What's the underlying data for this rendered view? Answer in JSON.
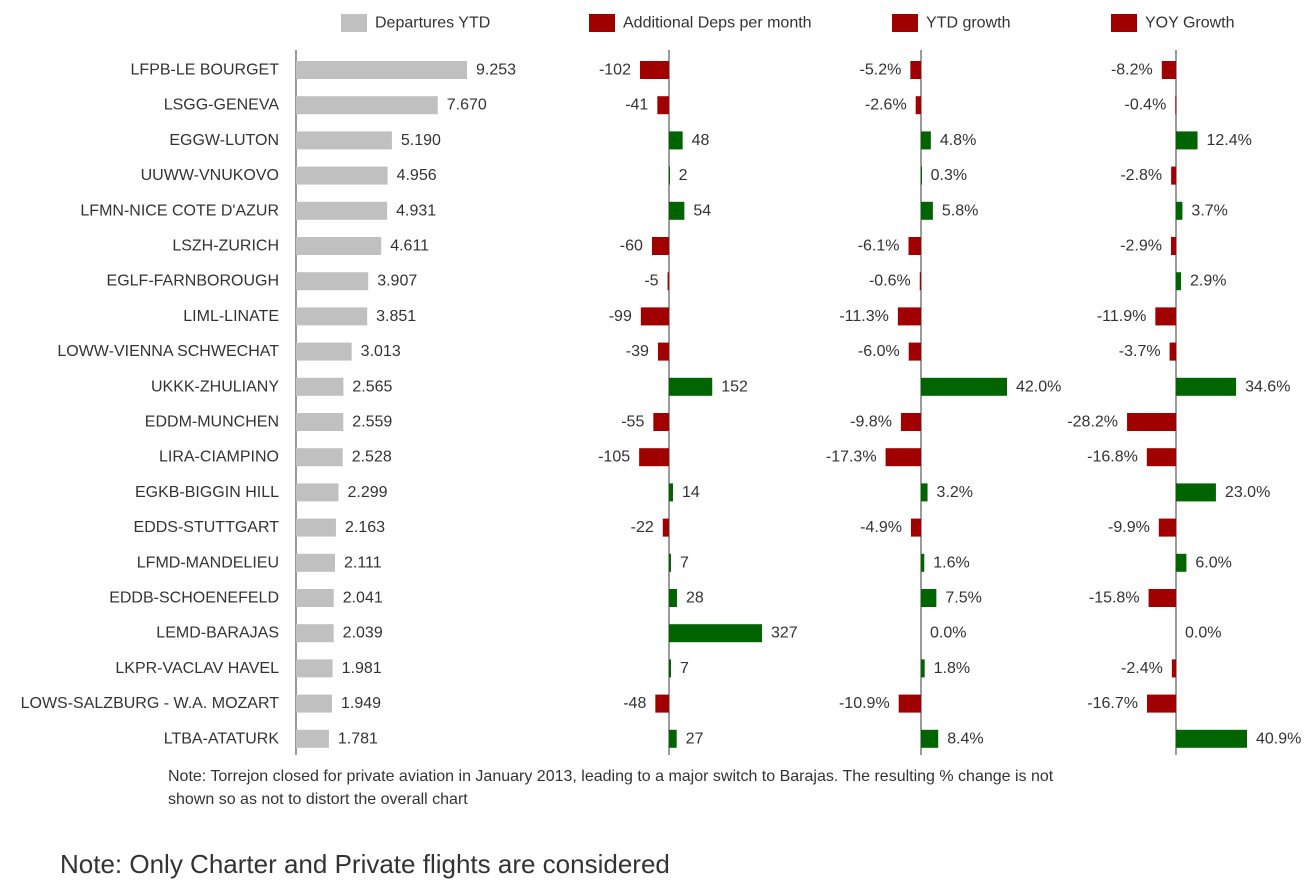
{
  "chart_data": {
    "type": "bar",
    "orientation": "horizontal",
    "categories": [
      "LFPB-LE BOURGET",
      "LSGG-GENEVA",
      "EGGW-LUTON",
      "UUWW-VNUKOVO",
      "LFMN-NICE COTE D'AZUR",
      "LSZH-ZURICH",
      "EGLF-FARNBOROUGH",
      "LIML-LINATE",
      "LOWW-VIENNA SCHWECHAT",
      "UKKK-ZHULIANY",
      "EDDM-MUNCHEN",
      "LIRA-CIAMPINO",
      "EGKB-BIGGIN HILL",
      "EDDS-STUTTGART",
      "LFMD-MANDELIEU",
      "EDDB-SCHOENEFELD",
      "LEMD-BARAJAS",
      "LKPR-VACLAV HAVEL",
      "LOWS-SALZBURG - W.A. MOZART",
      "LTBA-ATATURK"
    ],
    "legend": [
      "Departures YTD",
      "Additional Deps per month",
      "YTD growth",
      "YOY Growth"
    ],
    "legend_position": "top",
    "colors": {
      "departures": "#c0c0c0",
      "negative": "#a00000",
      "positive": "#006400",
      "axis": "#595959"
    },
    "series": [
      {
        "name": "Departures YTD",
        "values": [
          9253,
          7670,
          5190,
          4956,
          4931,
          4611,
          3907,
          3851,
          3013,
          2565,
          2559,
          2528,
          2299,
          2163,
          2111,
          2041,
          2039,
          1981,
          1949,
          1781
        ],
        "labels": [
          "9.253",
          "7.670",
          "5.190",
          "4.956",
          "4.931",
          "4.611",
          "3.907",
          "3.851",
          "3.013",
          "2.565",
          "2.559",
          "2.528",
          "2.299",
          "2.163",
          "2.111",
          "2.041",
          "2.039",
          "1.981",
          "1.949",
          "1.781"
        ]
      },
      {
        "name": "Additional Deps per month",
        "values": [
          -102,
          -41,
          48,
          2,
          54,
          -60,
          -5,
          -99,
          -39,
          152,
          -55,
          -105,
          14,
          -22,
          7,
          28,
          327,
          7,
          -48,
          27
        ],
        "labels": [
          "-102",
          "-41",
          "48",
          "2",
          "54",
          "-60",
          "-5",
          "-99",
          "-39",
          "152",
          "-55",
          "-105",
          "14",
          "-22",
          "7",
          "28",
          "327",
          "7",
          "-48",
          "27"
        ]
      },
      {
        "name": "YTD growth",
        "values": [
          -5.2,
          -2.6,
          4.8,
          0.3,
          5.8,
          -6.1,
          -0.6,
          -11.3,
          -6.0,
          42.0,
          -9.8,
          -17.3,
          3.2,
          -4.9,
          1.6,
          7.5,
          0.0,
          1.8,
          -10.9,
          8.4
        ],
        "labels": [
          "-5.2%",
          "-2.6%",
          "4.8%",
          "0.3%",
          "5.8%",
          "-6.1%",
          "-0.6%",
          "-11.3%",
          "-6.0%",
          "42.0%",
          "-9.8%",
          "-17.3%",
          "3.2%",
          "-4.9%",
          "1.6%",
          "7.5%",
          "0.0%",
          "1.8%",
          "-10.9%",
          "8.4%"
        ]
      },
      {
        "name": "YOY Growth",
        "values": [
          -8.2,
          -0.4,
          12.4,
          -2.8,
          3.7,
          -2.9,
          2.9,
          -11.9,
          -3.7,
          34.6,
          -28.2,
          -16.8,
          23.0,
          -9.9,
          6.0,
          -15.8,
          0.0,
          -2.4,
          -16.7,
          40.9
        ],
        "labels": [
          "-8.2%",
          "-0.4%",
          "12.4%",
          "-2.8%",
          "3.7%",
          "-2.9%",
          "2.9%",
          "-11.9%",
          "-3.7%",
          "34.6%",
          "-28.2%",
          "-16.8%",
          "23.0%",
          "-9.9%",
          "6.0%",
          "-15.8%",
          "0.0%",
          "-2.4%",
          "-16.7%",
          "40.9%"
        ]
      }
    ]
  },
  "notes": {
    "torrejon": "Note: Torrejon closed for private aviation in January 2013, leading to a major switch to Barajas.  The resulting % change is not shown so as not to distort the overall chart",
    "scope": "Note: Only Charter and Private flights are considered"
  }
}
